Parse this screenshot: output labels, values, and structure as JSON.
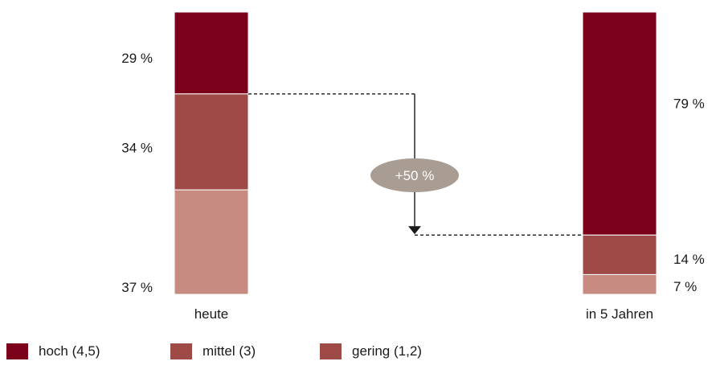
{
  "chart_data": {
    "type": "bar",
    "stacked": true,
    "orientation": "vertical",
    "categories": [
      "heute",
      "in 5 Jahren"
    ],
    "series": [
      {
        "name": "hoch (4,5)",
        "values": [
          29,
          79
        ],
        "color": "#7b0019"
      },
      {
        "name": "mittel (3)",
        "values": [
          34,
          14
        ],
        "color": "#9e4b47"
      },
      {
        "name": "gering (1,2)",
        "values": [
          37,
          7
        ],
        "color": "#c68a80"
      }
    ],
    "value_labels": {
      "heute": [
        "29 %",
        "34 %",
        "37 %"
      ],
      "in 5 Jahren": [
        "79 %",
        "14 %",
        "7 %"
      ]
    },
    "annotation": {
      "label": "+50 %",
      "color": "#a99c92"
    },
    "legend_position": "bottom-left",
    "legend": [
      {
        "label": "hoch (4,5)",
        "color": "#7b0019"
      },
      {
        "label": "mittel (3)",
        "color": "#9e4b47"
      },
      {
        "label": "gering (1,2)",
        "color": "#9e4b47"
      }
    ],
    "grid": false
  }
}
